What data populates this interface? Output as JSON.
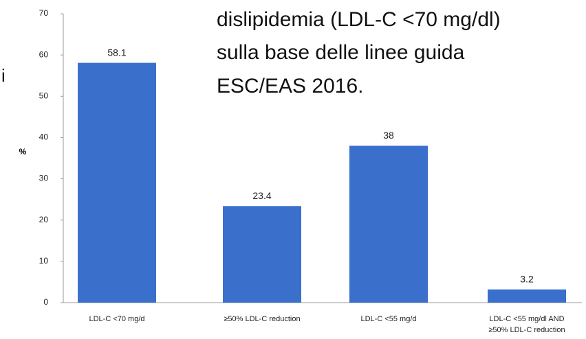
{
  "chart_data": {
    "type": "bar",
    "y_label": "%",
    "categories": [
      "LDL-C <70 mg/d",
      "≥50% LDL-C reduction",
      "LDL-C <55 mg/d",
      "LDL-C <55 mg/dl AND ≥50% LDL-C reduction"
    ],
    "values": [
      58.1,
      23.4,
      38,
      3.2
    ],
    "color": "#3a6fcc",
    "ylim": [
      0,
      70
    ],
    "yticks": [
      0,
      10,
      20,
      30,
      40,
      50,
      60,
      70
    ],
    "grid": false,
    "annotations": [
      "dislipidemia (LDL-C <70 mg/dl)",
      "sulla base delle linee guida",
      "ESC/EAS 2016.",
      "i"
    ]
  }
}
